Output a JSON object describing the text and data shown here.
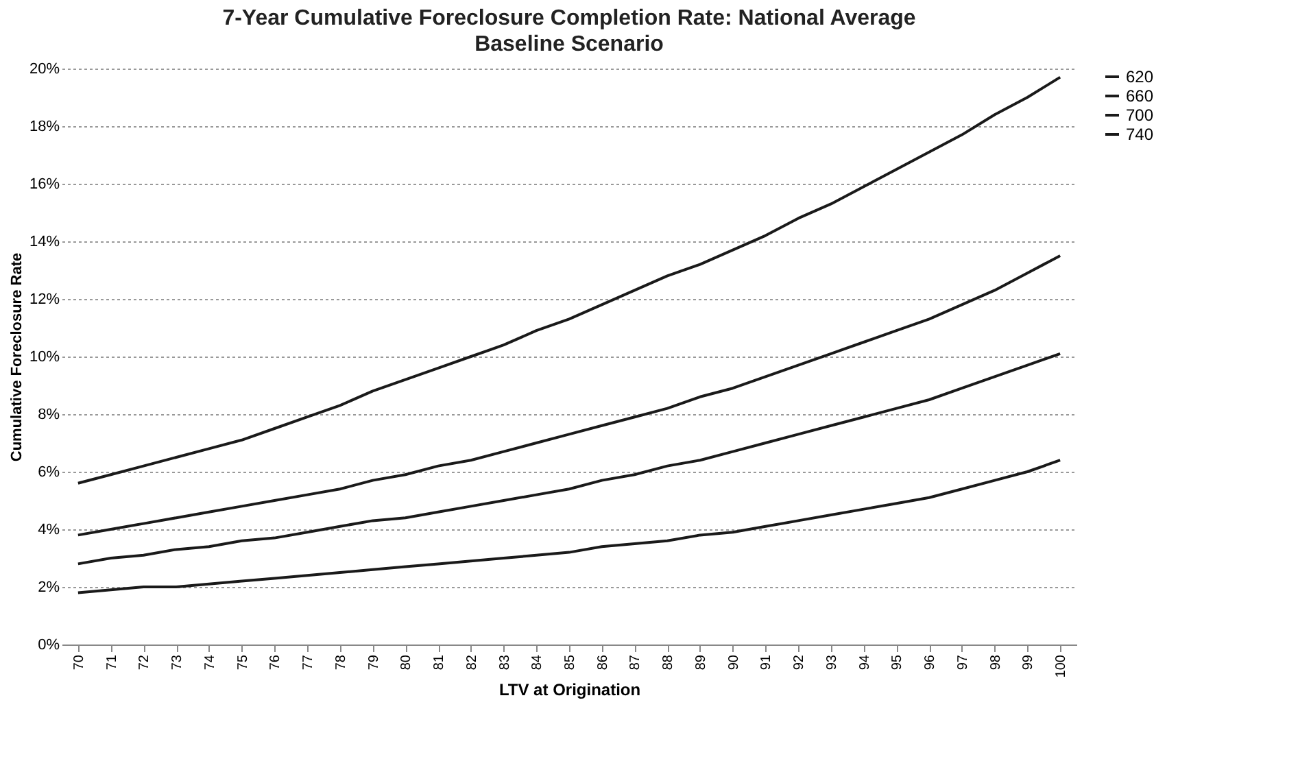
{
  "chart_data": {
    "type": "line",
    "title": "7-Year Cumulative Foreclosure Completion Rate: National Average",
    "subtitle": "Baseline Scenario",
    "xlabel": "LTV at Origination",
    "ylabel": "Cumulative Foreclosure Rate",
    "categories": [
      "70",
      "71",
      "72",
      "73",
      "74",
      "75",
      "76",
      "77",
      "78",
      "79",
      "80",
      "81",
      "82",
      "83",
      "84",
      "85",
      "86",
      "87",
      "88",
      "89",
      "90",
      "91",
      "92",
      "93",
      "94",
      "95",
      "96",
      "97",
      "98",
      "99",
      "100"
    ],
    "series": [
      {
        "name": "620",
        "color": "#1a1a1a",
        "values": [
          5.6,
          5.9,
          6.2,
          6.5,
          6.8,
          7.1,
          7.5,
          7.9,
          8.3,
          8.8,
          9.2,
          9.6,
          10.0,
          10.4,
          10.9,
          11.3,
          11.8,
          12.3,
          12.8,
          13.2,
          13.7,
          14.2,
          14.8,
          15.3,
          15.9,
          16.5,
          17.1,
          17.7,
          18.4,
          19.0,
          19.7
        ]
      },
      {
        "name": "660",
        "color": "#1a1a1a",
        "values": [
          3.8,
          4.0,
          4.2,
          4.4,
          4.6,
          4.8,
          5.0,
          5.2,
          5.4,
          5.7,
          5.9,
          6.2,
          6.4,
          6.7,
          7.0,
          7.3,
          7.6,
          7.9,
          8.2,
          8.6,
          8.9,
          9.3,
          9.7,
          10.1,
          10.5,
          10.9,
          11.3,
          11.8,
          12.3,
          12.9,
          13.5
        ]
      },
      {
        "name": "700",
        "color": "#1a1a1a",
        "values": [
          2.8,
          3.0,
          3.1,
          3.3,
          3.4,
          3.6,
          3.7,
          3.9,
          4.1,
          4.3,
          4.4,
          4.6,
          4.8,
          5.0,
          5.2,
          5.4,
          5.7,
          5.9,
          6.2,
          6.4,
          6.7,
          7.0,
          7.3,
          7.6,
          7.9,
          8.2,
          8.5,
          8.9,
          9.3,
          9.7,
          10.1
        ]
      },
      {
        "name": "740",
        "color": "#1a1a1a",
        "values": [
          1.8,
          1.9,
          2.0,
          2.0,
          2.1,
          2.2,
          2.3,
          2.4,
          2.5,
          2.6,
          2.7,
          2.8,
          2.9,
          3.0,
          3.1,
          3.2,
          3.4,
          3.5,
          3.6,
          3.8,
          3.9,
          4.1,
          4.3,
          4.5,
          4.7,
          4.9,
          5.1,
          5.4,
          5.7,
          6.0,
          6.4
        ]
      }
    ],
    "ylim": [
      0,
      20
    ],
    "yticks": [
      {
        "value": 0,
        "label": "0%"
      },
      {
        "value": 2,
        "label": "2%"
      },
      {
        "value": 4,
        "label": "4%"
      },
      {
        "value": 6,
        "label": "6%"
      },
      {
        "value": 8,
        "label": "8%"
      },
      {
        "value": 10,
        "label": "10%"
      },
      {
        "value": 12,
        "label": "12%"
      },
      {
        "value": 14,
        "label": "14%"
      },
      {
        "value": 16,
        "label": "16%"
      },
      {
        "value": 18,
        "label": "18%"
      },
      {
        "value": 20,
        "label": "20%"
      }
    ],
    "grid": "y",
    "legend": "right",
    "marker": "none",
    "line_style": "solid"
  }
}
